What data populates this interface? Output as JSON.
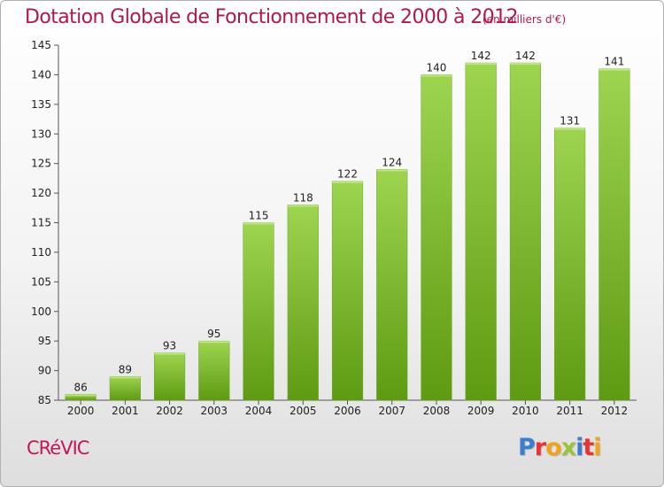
{
  "header": {
    "title": "Dotation Globale de Fonctionnement de 2000 à 2012",
    "subtitle": "(en milliers d'€)"
  },
  "footer": {
    "commune": "CRéVIC",
    "logo_letters": [
      "P",
      "r",
      "o",
      "x",
      "i",
      "t",
      "i"
    ],
    "logo_colors": [
      "#3a7fcf",
      "#e8342e",
      "#f2a31b",
      "#9bc43a",
      "#3a7fcf",
      "#e8342e",
      "#f2a31b"
    ]
  },
  "colors": {
    "bar_light": "#9ed550",
    "bar_dark": "#5e9a12",
    "title": "#b0174f"
  },
  "chart_data": {
    "type": "bar",
    "categories": [
      "2000",
      "2001",
      "2002",
      "2003",
      "2004",
      "2005",
      "2006",
      "2007",
      "2008",
      "2009",
      "2010",
      "2011",
      "2012"
    ],
    "values": [
      86,
      89,
      93,
      95,
      115,
      118,
      122,
      124,
      140,
      142,
      142,
      131,
      141
    ],
    "title": "Dotation Globale de Fonctionnement de 2000 à 2012",
    "subtitle": "(en milliers d'€)",
    "ylim": [
      85,
      145
    ],
    "yticks": [
      85,
      90,
      95,
      100,
      105,
      110,
      115,
      120,
      125,
      130,
      135,
      140,
      145
    ],
    "grid": false,
    "data_labels": true
  }
}
